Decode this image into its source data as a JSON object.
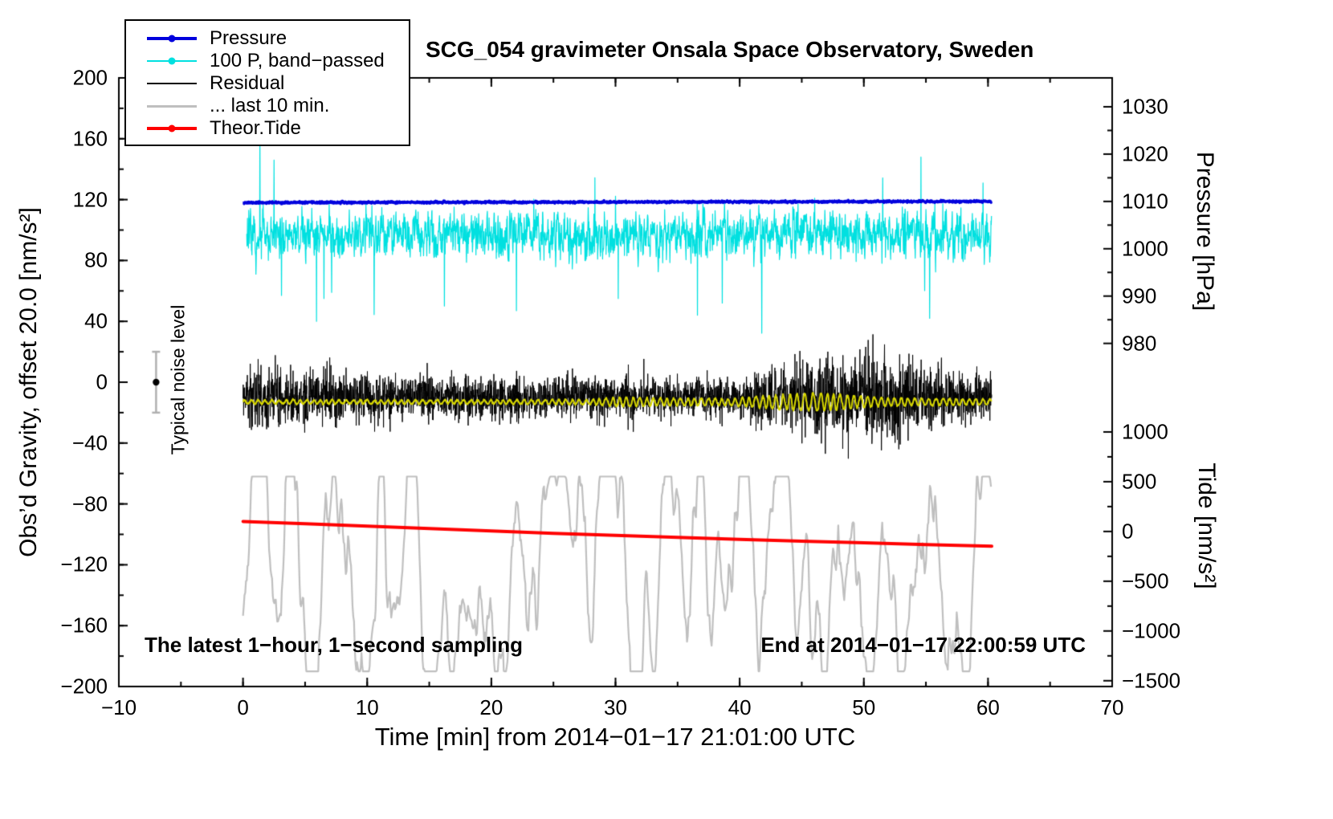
{
  "chart_data": {
    "type": "line",
    "title": "SCG_054 gravimeter Onsala Space Observatory, Sweden",
    "xlabel": "Time [min] from 2014−01−17 21:01:00 UTC",
    "ylabel_left": "Obs’d Gravity, offset 20.0 [nm/s²]",
    "ylabel_pressure": "Pressure [hPa]",
    "ylabel_tide": "Tide [nm/s²]",
    "annotation_sampling": "The latest 1−hour, 1−second sampling",
    "annotation_end": "End at 2014−01−17 22:00:59 UTC",
    "noise_label": "Typical noise level",
    "x_range": [
      -10,
      70
    ],
    "x_ticks": [
      -10,
      0,
      10,
      20,
      30,
      40,
      50,
      60,
      70
    ],
    "x_minor_step": 5,
    "y_range": [
      -200,
      200
    ],
    "y_ticks": [
      -200,
      -160,
      -120,
      -80,
      -40,
      0,
      40,
      80,
      120,
      160,
      200
    ],
    "y_minor_step": 20,
    "pressure_axis": {
      "ticks": [
        1030,
        1020,
        1010,
        1000,
        990,
        980
      ],
      "g_at_first": 181.0,
      "g_per_tick": 31.1
    },
    "tide_axis": {
      "ticks": [
        1000,
        500,
        0,
        -500,
        -1000,
        -1500
      ],
      "g_at_first": -32.7,
      "g_per_tick": 32.7
    },
    "noise_marker": {
      "t": -7,
      "g": 0,
      "err": 20
    },
    "legend": [
      {
        "label": "Pressure",
        "color": "#0000dd",
        "lw": 4,
        "marker": true
      },
      {
        "label": "100 P, band−passed",
        "color": "#00e0e0",
        "lw": 2,
        "marker": true
      },
      {
        "label": "Residual",
        "color": "#000000",
        "lw": 2.5,
        "marker": false
      },
      {
        "label": "... last 10 min.",
        "color": "#bfbfbf",
        "lw": 3,
        "marker": false
      },
      {
        "label": "Theor.Tide",
        "color": "#ff0000",
        "lw": 4,
        "marker": true
      }
    ],
    "series": {
      "pressure": {
        "name": "Pressure",
        "color": "#0000dd",
        "lw": 3.5,
        "seed": 11,
        "t_start": 0,
        "t_end": 60.3,
        "baseline": 118.0,
        "slope": 0.014,
        "sigma": 0.3,
        "approx_hpa": 1008.5
      },
      "band_passed": {
        "name": "100 P, band−passed",
        "color": "#00e0e0",
        "lw": 1.2,
        "seed": 22,
        "t_start": 0.3,
        "t_end": 60.3,
        "baseline": 97,
        "ar": 0.5,
        "sigma": 6.5,
        "spike_prob": 0.004,
        "spike_min": 18,
        "spike_max": 50,
        "spikes": [
          {
            "t": 1.35,
            "v": 166
          },
          {
            "t": 2.5,
            "v": 146
          },
          {
            "t": 3.1,
            "v": 57
          },
          {
            "t": 5.9,
            "v": 40
          },
          {
            "t": 6.5,
            "v": 55
          },
          {
            "t": 16.2,
            "v": 50
          },
          {
            "t": 22.0,
            "v": 47
          },
          {
            "t": 30.2,
            "v": 55
          },
          {
            "t": 36.6,
            "v": 44
          },
          {
            "t": 38.6,
            "v": 52
          },
          {
            "t": 54.6,
            "v": 148
          },
          {
            "t": 55.3,
            "v": 42
          },
          {
            "t": 59.6,
            "v": 131
          }
        ]
      },
      "residual": {
        "name": "Residual",
        "color": "#000000",
        "lw": 1,
        "seed": 33,
        "t_start": 0,
        "t_end": 60.3,
        "baseline": -10,
        "envelope": [
          [
            0,
            22
          ],
          [
            2,
            26
          ],
          [
            4,
            24
          ],
          [
            8,
            20
          ],
          [
            12,
            18
          ],
          [
            16,
            18
          ],
          [
            20,
            17
          ],
          [
            24,
            16
          ],
          [
            28,
            17
          ],
          [
            32,
            17
          ],
          [
            36,
            16
          ],
          [
            40,
            17
          ],
          [
            41.5,
            22
          ],
          [
            43,
            26
          ],
          [
            45,
            30
          ],
          [
            47,
            34
          ],
          [
            49,
            32
          ],
          [
            50.5,
            38
          ],
          [
            52,
            34
          ],
          [
            53.5,
            30
          ],
          [
            55,
            24
          ],
          [
            56.5,
            22
          ],
          [
            58,
            20
          ],
          [
            60.3,
            20
          ]
        ]
      },
      "residual_filtered": {
        "name": "Residual (filtered)",
        "color": "#d6d600",
        "lw": 2,
        "seed": 44,
        "t_start": 0,
        "t_end": 60.3,
        "baseline": -13,
        "period": 0.55,
        "amplitude": [
          [
            0,
            1.3
          ],
          [
            20,
            1.3
          ],
          [
            28,
            1.6
          ],
          [
            30.5,
            3.2
          ],
          [
            33,
            2.6
          ],
          [
            36,
            2.4
          ],
          [
            39,
            2.2
          ],
          [
            41.5,
            3.6
          ],
          [
            44,
            5
          ],
          [
            46,
            6
          ],
          [
            48,
            5
          ],
          [
            50,
            3.6
          ],
          [
            52,
            2.6
          ],
          [
            55,
            2.2
          ],
          [
            60.3,
            1.8
          ]
        ]
      },
      "theor_tide": {
        "name": "Theor.Tide",
        "color": "#ff0000",
        "lw": 4,
        "points": [
          [
            0,
            -91.5
          ],
          [
            5,
            -93
          ],
          [
            10,
            -94.6
          ],
          [
            15,
            -96.2
          ],
          [
            20,
            -97.8
          ],
          [
            25,
            -99.3
          ],
          [
            30,
            -100.7
          ],
          [
            35,
            -102
          ],
          [
            40,
            -103.3
          ],
          [
            45,
            -104.5
          ],
          [
            50,
            -105.6
          ],
          [
            55,
            -106.7
          ],
          [
            60.3,
            -107.8
          ]
        ],
        "tide_start_approx": 100,
        "tide_end_approx": -150
      },
      "residual_last10": {
        "name": "... last 10 min.",
        "color": "#bfbfbf",
        "lw": 2.2,
        "seed": 55,
        "t_start": 0,
        "t_end": 60.3,
        "baseline": -131,
        "ar1": 0.75,
        "ar2": 0.92,
        "sigma": 10,
        "gain": 2.2,
        "min": -190,
        "max": -62
      }
    }
  }
}
